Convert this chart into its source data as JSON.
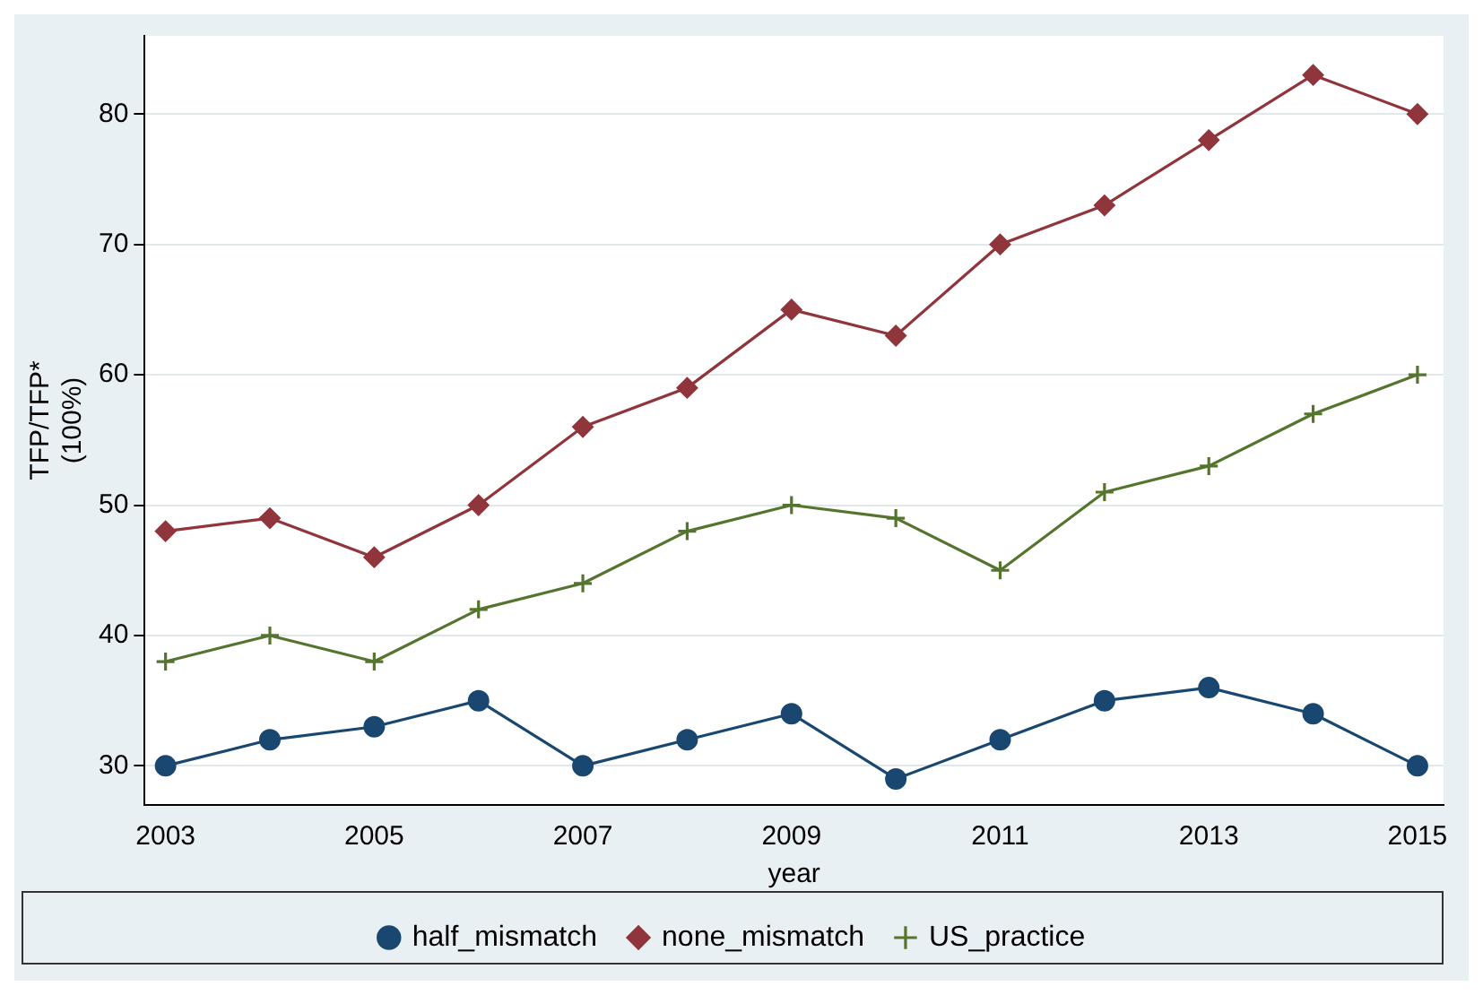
{
  "chart_data": {
    "type": "line",
    "xlabel": "year",
    "ylabel": "TFP/TFP*\n(100%)",
    "x": [
      2003,
      2004,
      2005,
      2006,
      2007,
      2008,
      2009,
      2010,
      2011,
      2012,
      2013,
      2014,
      2015
    ],
    "series": [
      {
        "name": "half_mismatch",
        "color": "#1a476f",
        "marker": "circle",
        "values": [
          30,
          32,
          33,
          35,
          30,
          32,
          34,
          29,
          32,
          35,
          36,
          34,
          30
        ]
      },
      {
        "name": "none_mismatch",
        "color": "#90353b",
        "marker": "diamond",
        "values": [
          48,
          49,
          46,
          50,
          56,
          59,
          65,
          63,
          70,
          73,
          78,
          83,
          80
        ]
      },
      {
        "name": "US_practice",
        "color": "#55752f",
        "marker": "cross",
        "values": [
          38,
          40,
          38,
          42,
          44,
          48,
          50,
          49,
          45,
          51,
          53,
          57,
          60
        ]
      }
    ],
    "xlim": [
      2002.8,
      2015.25
    ],
    "xticks": [
      2003,
      2005,
      2007,
      2009,
      2011,
      2013,
      2015
    ],
    "ylim": [
      27,
      86
    ],
    "yticks": [
      30,
      40,
      50,
      60,
      70,
      80
    ],
    "grid": "y",
    "legend": "bottom",
    "line_style": "solid"
  }
}
